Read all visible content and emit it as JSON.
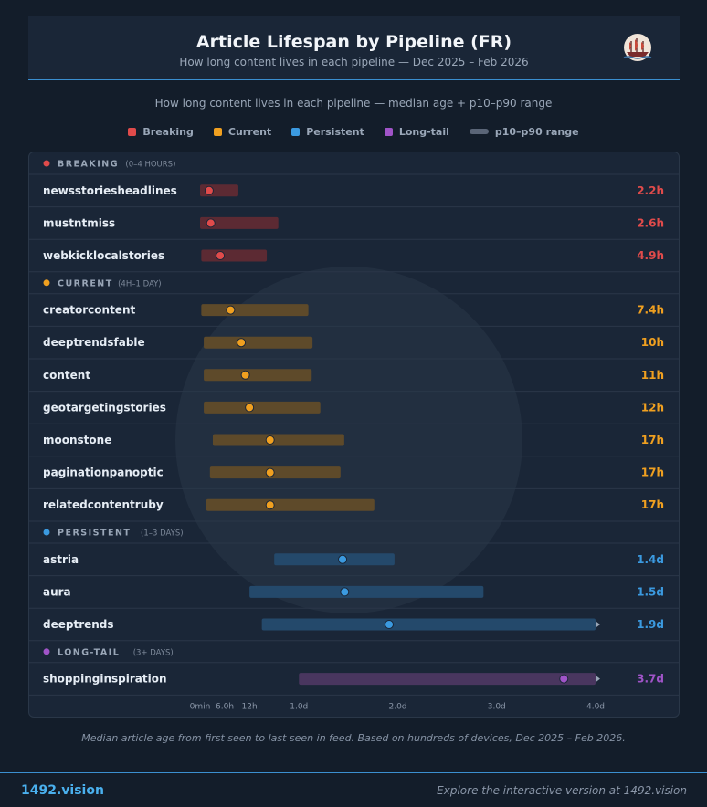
{
  "header": {
    "title": "Article Lifespan by Pipeline (FR)",
    "subtitle": "How long content lives in each pipeline — Dec 2025 – Feb 2026",
    "logo_icon": "ship-logo-icon"
  },
  "chart_subtitle": "How long content lives in each pipeline — median age + p10–p90 range",
  "legend": [
    {
      "label": "Breaking",
      "color": "#e04b4b"
    },
    {
      "label": "Current",
      "color": "#f0a020"
    },
    {
      "label": "Persistent",
      "color": "#3b9ae0"
    },
    {
      "label": "Long-tail",
      "color": "#a054c8"
    },
    {
      "label": "p10–p90 range",
      "color": "#5a6577"
    }
  ],
  "chart_data": {
    "type": "range-dot",
    "x_unit": "hours",
    "xlim": [
      0,
      96
    ],
    "x_ticks": [
      {
        "value": 0,
        "label": "0min"
      },
      {
        "value": 6,
        "label": "6.0h"
      },
      {
        "value": 12,
        "label": "12h"
      },
      {
        "value": 24,
        "label": "1.0d"
      },
      {
        "value": 48,
        "label": "2.0d"
      },
      {
        "value": 72,
        "label": "3.0d"
      },
      {
        "value": 96,
        "label": "4.0d"
      }
    ],
    "groups": [
      {
        "name": "BREAKING",
        "range_label": "(0–4 HOURS)",
        "color": "#e04b4b",
        "bar_color": "#5c2a33",
        "rows": [
          {
            "name": "newsstoriesheadlines",
            "p10": 0,
            "p90": 9.3,
            "median": 2.2,
            "label": "2.2h"
          },
          {
            "name": "mustntmiss",
            "p10": 0,
            "p90": 19,
            "median": 2.6,
            "label": "2.6h"
          },
          {
            "name": "webkicklocalstories",
            "p10": 0.3,
            "p90": 16.2,
            "median": 4.9,
            "label": "4.9h"
          }
        ]
      },
      {
        "name": "CURRENT",
        "range_label": "(4H–1 DAY)",
        "color": "#f0a020",
        "bar_color": "#5e4a2a",
        "rows": [
          {
            "name": "creatorcontent",
            "p10": 0.3,
            "p90": 26.3,
            "median": 7.4,
            "label": "7.4h"
          },
          {
            "name": "deeptrendsfable",
            "p10": 0.9,
            "p90": 27.3,
            "median": 10,
            "label": "10h"
          },
          {
            "name": "content",
            "p10": 0.9,
            "p90": 27.1,
            "median": 11,
            "label": "11h"
          },
          {
            "name": "geotargetingstories",
            "p10": 0.9,
            "p90": 29.2,
            "median": 12,
            "label": "12h"
          },
          {
            "name": "moonstone",
            "p10": 3.1,
            "p90": 35,
            "median": 17,
            "label": "17h"
          },
          {
            "name": "paginationpanoptic",
            "p10": 2.4,
            "p90": 34.1,
            "median": 17,
            "label": "17h"
          },
          {
            "name": "relatedcontentruby",
            "p10": 1.5,
            "p90": 42.3,
            "median": 17,
            "label": "17h"
          }
        ]
      },
      {
        "name": "PERSISTENT",
        "range_label": "(1–3 DAYS)",
        "color": "#3b9ae0",
        "bar_color": "#24496b",
        "rows": [
          {
            "name": "astria",
            "p10": 18,
            "p90": 47.2,
            "median": 34.6,
            "label": "1.4d"
          },
          {
            "name": "aura",
            "p10": 12,
            "p90": 68.8,
            "median": 35.1,
            "label": "1.5d"
          },
          {
            "name": "deeptrends",
            "p10": 15,
            "p90": 96,
            "median": 45.9,
            "label": "1.9d",
            "clipped": true
          }
        ]
      },
      {
        "name": "LONG-TAIL",
        "range_label": "(3+ DAYS)",
        "color": "#a054c8",
        "bar_color": "#49365f",
        "rows": [
          {
            "name": "shoppinginspiration",
            "p10": 24,
            "p90": 96,
            "median": 88.3,
            "label": "3.7d",
            "clipped": true
          }
        ]
      }
    ]
  },
  "footnote": "Median article age from first seen to last seen in feed. Based on hundreds of devices, Dec 2025 – Feb 2026.",
  "footer": {
    "brand": "1492.vision",
    "explore": "Explore the interactive version at 1492.vision"
  }
}
